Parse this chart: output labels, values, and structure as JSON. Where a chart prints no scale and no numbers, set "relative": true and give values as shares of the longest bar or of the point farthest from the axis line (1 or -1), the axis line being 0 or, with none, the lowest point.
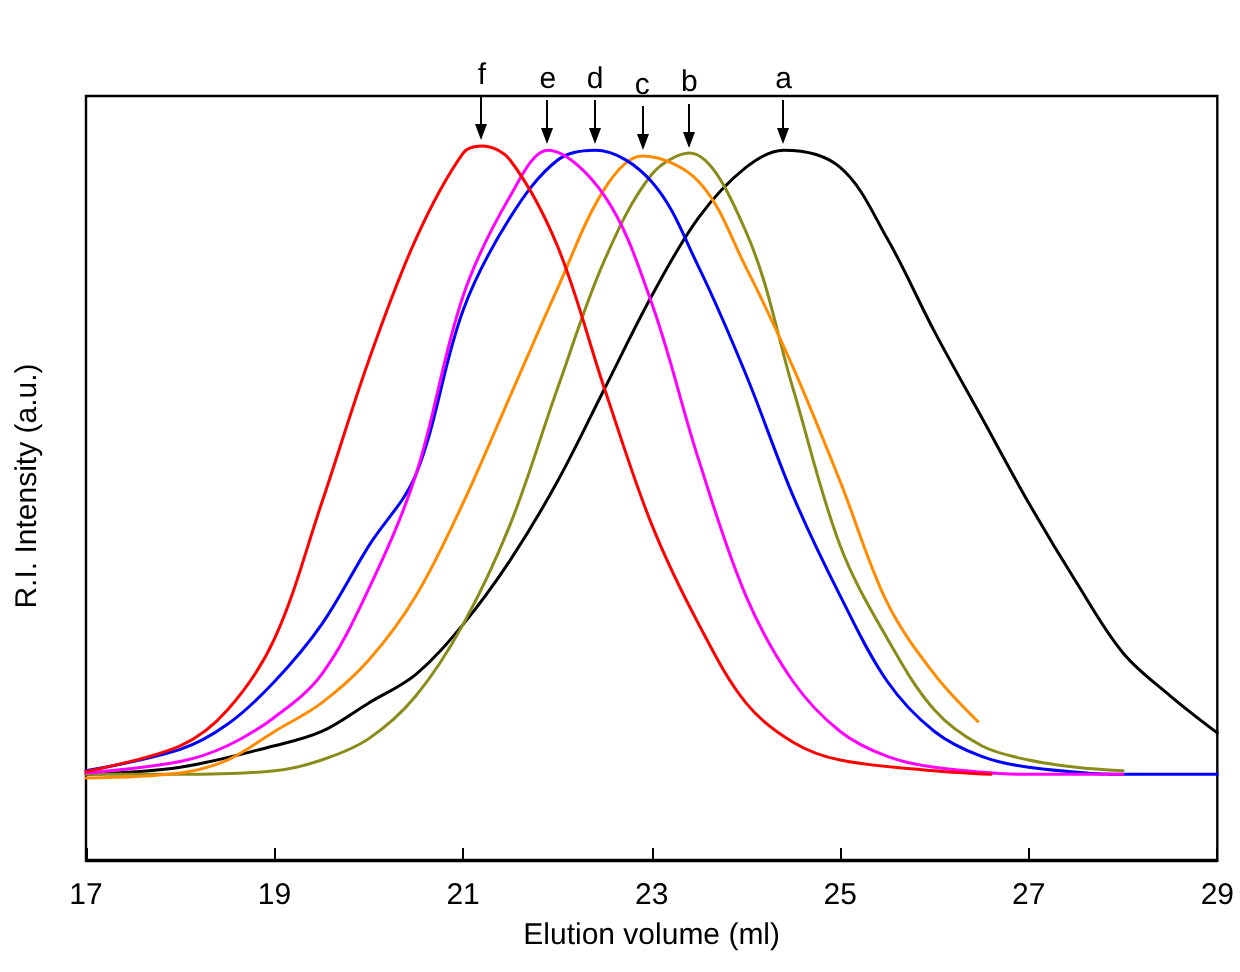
{
  "chart_data": {
    "type": "line",
    "relative": true,
    "xlabel": "Elution volume (ml)",
    "ylabel": "R.I. Intensity (a.u.)",
    "xlim": [
      17,
      29
    ],
    "xticks": [
      17,
      19,
      21,
      23,
      25,
      27,
      29
    ],
    "grid": false,
    "legend": false,
    "marker": "none",
    "line_style": "solid",
    "series": [
      {
        "name": "a",
        "color": "#000000",
        "x": [
          17,
          18,
          19,
          19.5,
          20,
          20.5,
          21,
          21.5,
          22,
          22.5,
          23,
          23.5,
          24,
          24.4,
          25,
          25.5,
          26,
          26.5,
          27,
          27.5,
          28,
          28.5,
          29
        ],
        "values": [
          0.12,
          0.13,
          0.16,
          0.18,
          0.22,
          0.26,
          0.33,
          0.42,
          0.53,
          0.66,
          0.79,
          0.9,
          0.97,
          0.994,
          0.97,
          0.87,
          0.74,
          0.62,
          0.5,
          0.39,
          0.29,
          0.23,
          0.178
        ]
      },
      {
        "name": "b",
        "color": "#8b8b1a",
        "x": [
          17,
          18,
          19,
          19.5,
          20,
          20.5,
          21,
          21.5,
          22,
          22.5,
          23,
          23.4,
          24,
          24.5,
          25,
          25.5,
          26,
          26.5,
          27,
          27.5,
          28
        ],
        "values": [
          0.12,
          0.12,
          0.125,
          0.14,
          0.17,
          0.23,
          0.33,
          0.47,
          0.66,
          0.84,
          0.96,
          0.99,
          0.88,
          0.66,
          0.44,
          0.31,
          0.21,
          0.16,
          0.14,
          0.13,
          0.125
        ]
      },
      {
        "name": "c",
        "color": "#ff8c00",
        "x": [
          17,
          18,
          18.5,
          19,
          19.5,
          20,
          20.5,
          21,
          21.5,
          22,
          22.5,
          22.9,
          23.5,
          24,
          24.5,
          25,
          25.5,
          26,
          26.46
        ],
        "values": [
          0.115,
          0.122,
          0.14,
          0.18,
          0.22,
          0.28,
          0.37,
          0.5,
          0.65,
          0.8,
          0.94,
          0.986,
          0.95,
          0.83,
          0.69,
          0.53,
          0.36,
          0.26,
          0.194
        ]
      },
      {
        "name": "d",
        "color": "#0000ff",
        "x": [
          17,
          18,
          18.5,
          19,
          19.5,
          20,
          20.5,
          21,
          21.5,
          22,
          22.4,
          23,
          23.5,
          24,
          24.5,
          25,
          25.5,
          26,
          26.5,
          27,
          28,
          29
        ],
        "values": [
          0.125,
          0.155,
          0.19,
          0.25,
          0.33,
          0.44,
          0.54,
          0.77,
          0.9,
          0.98,
          0.994,
          0.95,
          0.83,
          0.68,
          0.51,
          0.37,
          0.25,
          0.18,
          0.145,
          0.13,
          0.12,
          0.12
        ]
      },
      {
        "name": "e",
        "color": "#ff00ff",
        "x": [
          17,
          18,
          18.5,
          19,
          19.5,
          20,
          20.5,
          21,
          21.5,
          21.9,
          22.5,
          23,
          23.5,
          24,
          24.5,
          25,
          25.5,
          26,
          27,
          28
        ],
        "values": [
          0.122,
          0.138,
          0.16,
          0.2,
          0.26,
          0.38,
          0.54,
          0.79,
          0.93,
          0.994,
          0.93,
          0.78,
          0.56,
          0.37,
          0.25,
          0.18,
          0.145,
          0.13,
          0.12,
          0.12
        ]
      },
      {
        "name": "f",
        "color": "#ff0000",
        "x": [
          17,
          18,
          18.5,
          19,
          19.5,
          20,
          20.5,
          21,
          21.2,
          21.5,
          22,
          22.5,
          23,
          23.5,
          24,
          24.5,
          25,
          26,
          26.6
        ],
        "values": [
          0.124,
          0.16,
          0.21,
          0.31,
          0.5,
          0.7,
          0.87,
          0.99,
          1.0,
          0.98,
          0.86,
          0.66,
          0.47,
          0.33,
          0.22,
          0.165,
          0.14,
          0.125,
          0.12
        ]
      }
    ]
  }
}
